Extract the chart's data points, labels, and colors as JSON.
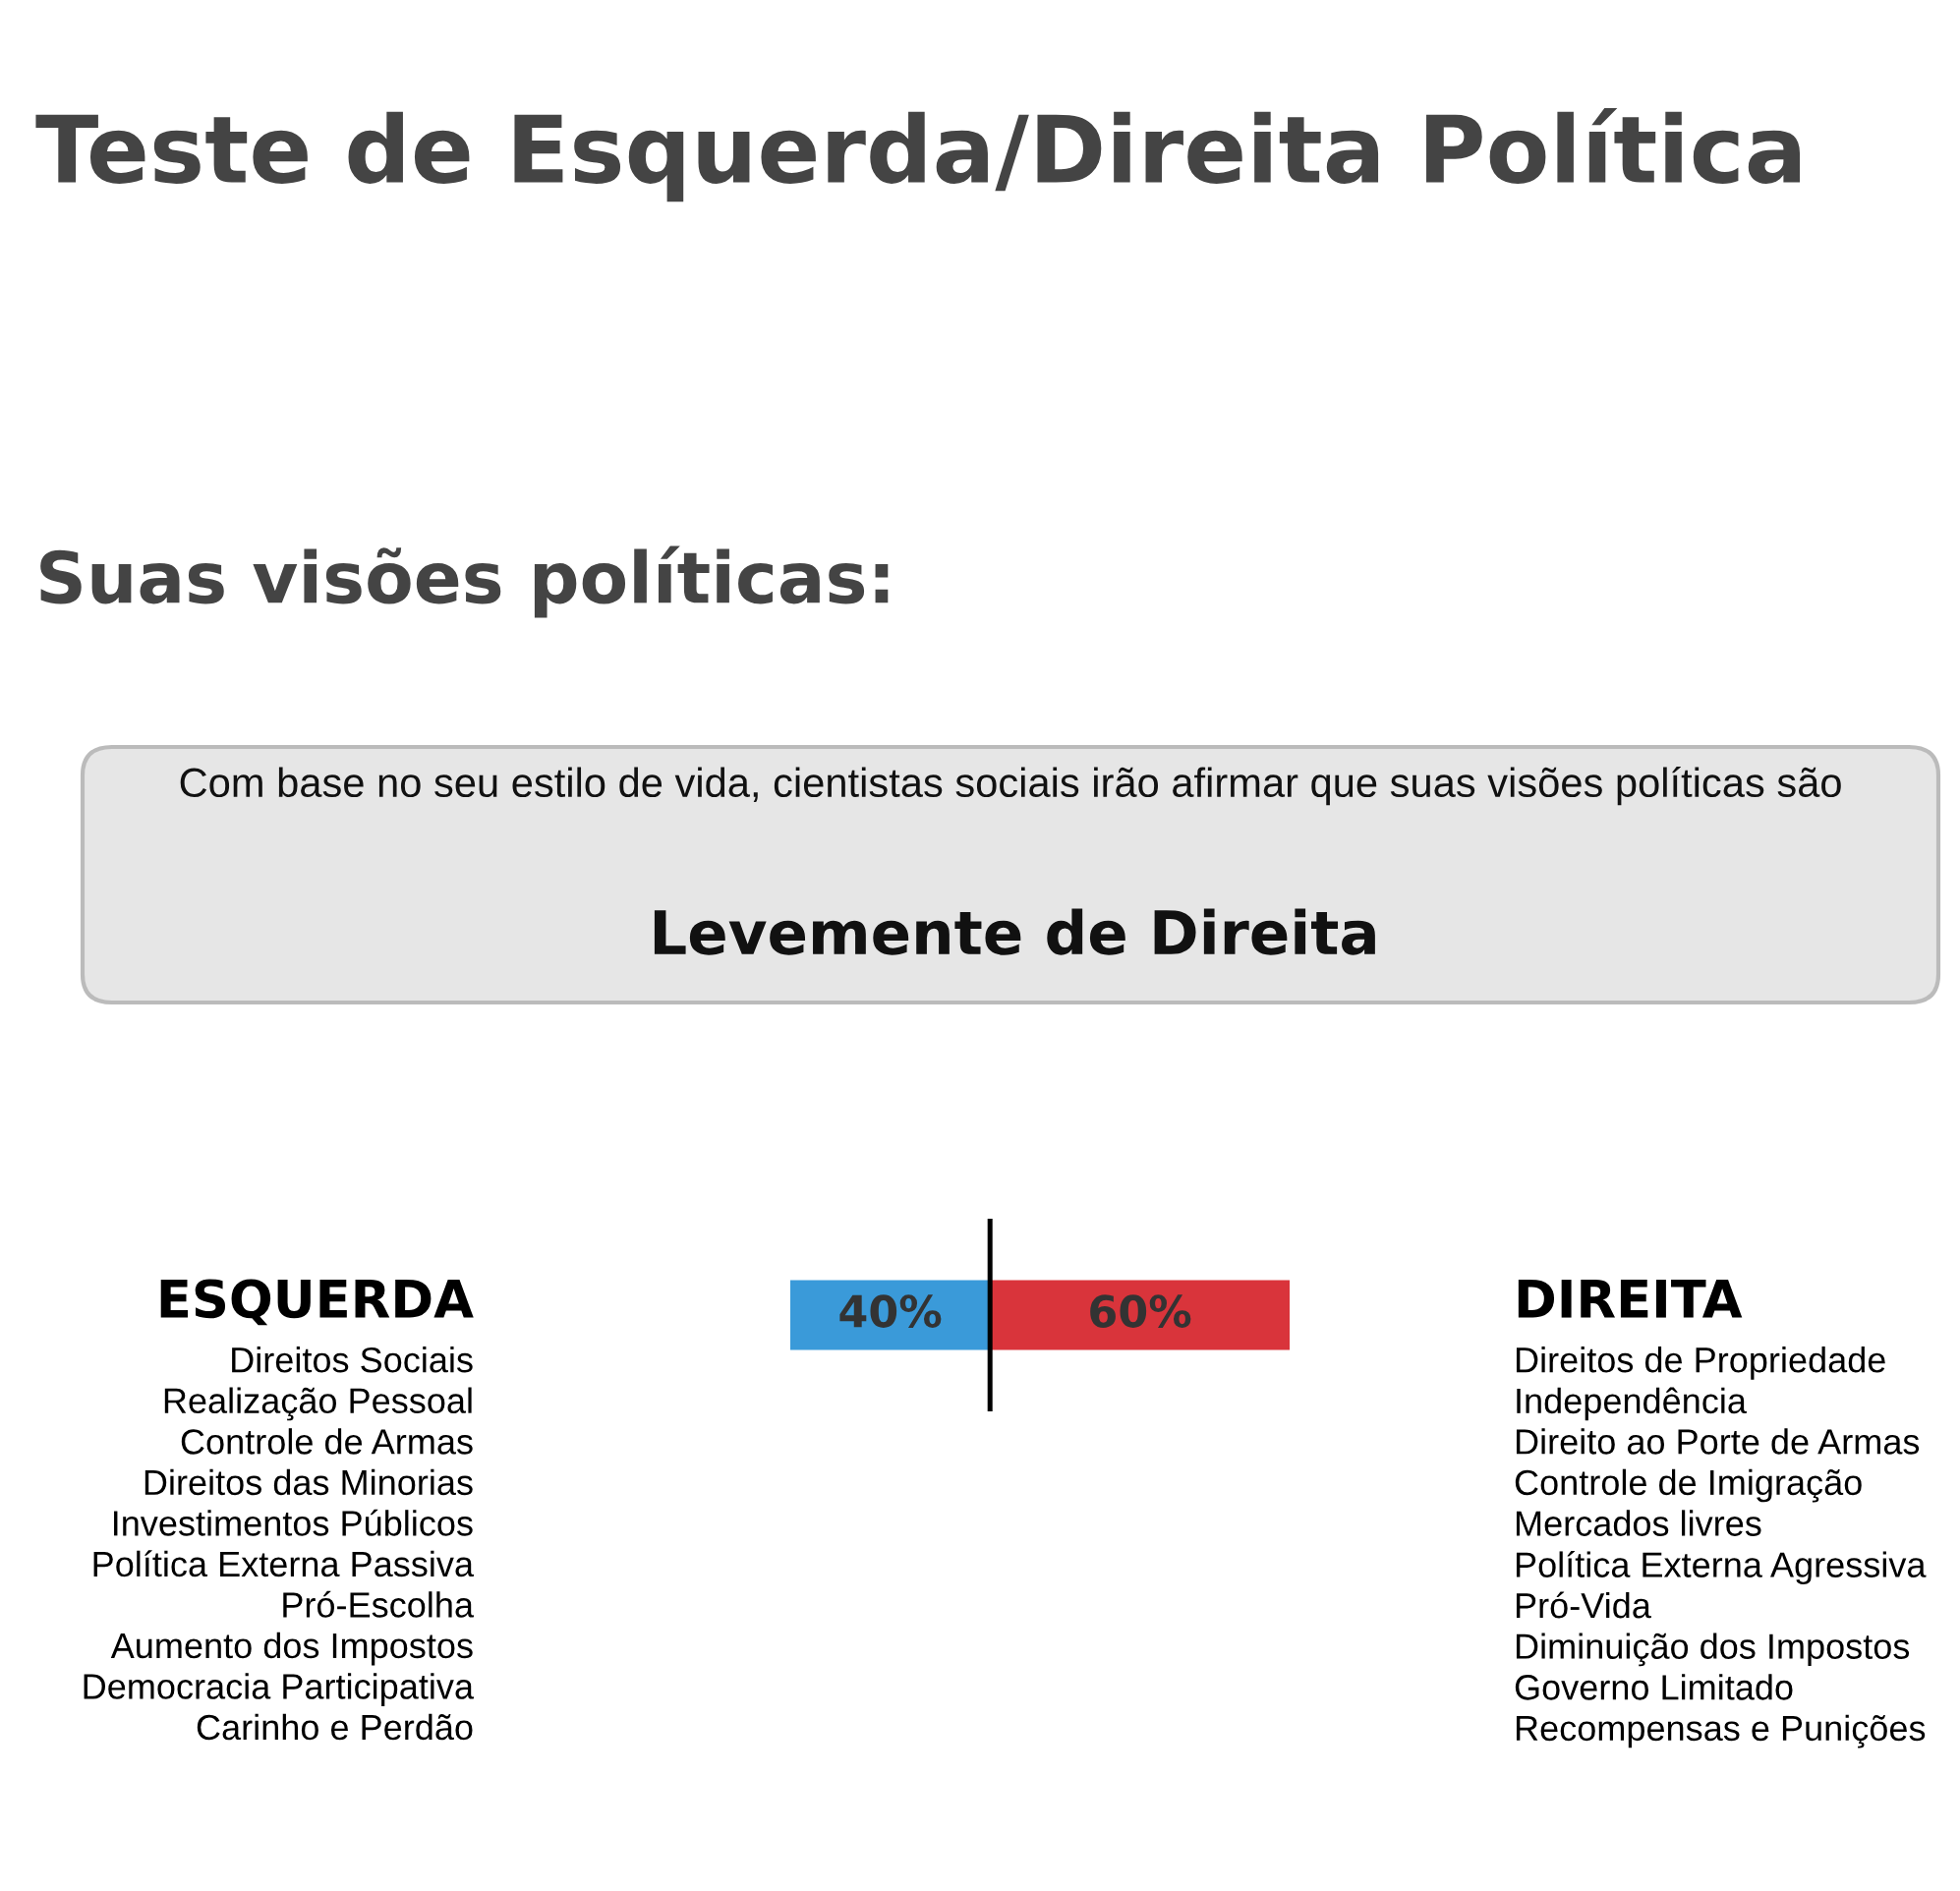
{
  "chart_data": {
    "type": "bar",
    "orientation": "horizontal",
    "stacked": true,
    "title": "Teste de Esquerda/Direita Política",
    "subtitle": "Suas visões políticas:",
    "categories": [
      null
    ],
    "series": [
      {
        "color": "#3a9ad9",
        "values": [
          40
        ],
        "value_labels": [
          "40%"
        ]
      },
      {
        "color": "#d9343b",
        "values": [
          60
        ],
        "value_labels": [
          "60%"
        ]
      }
    ],
    "ref_lines": [
      {
        "axis": "x",
        "value": 40,
        "color": "#000000"
      }
    ],
    "annotations": [
      "Com base no seu estilo de vida, cientistas sociais irão afirmar que suas visões políticas são",
      "Levemente de Direita",
      "ESQUERDA",
      "Direitos Sociais\nRealização Pessoal\nControle de Armas\nDireitos das Minorias\nInvestimentos Públicos\nPolítica Externa Passiva\nPró-Escolha\nAumento dos Impostos\nDemocracia Participativa\nCarinho e Perdão",
      "DIREITA",
      "Direitos de Propriedade\nIndependência\nDireito ao Porte de Armas\nControle de Imigração\nMercados livres\nPolítica Externa Agressiva\nPró-Vida\nDiminuição dos Impostos\nGoverno Limitado\nRecompensas e Punições"
    ]
  }
}
